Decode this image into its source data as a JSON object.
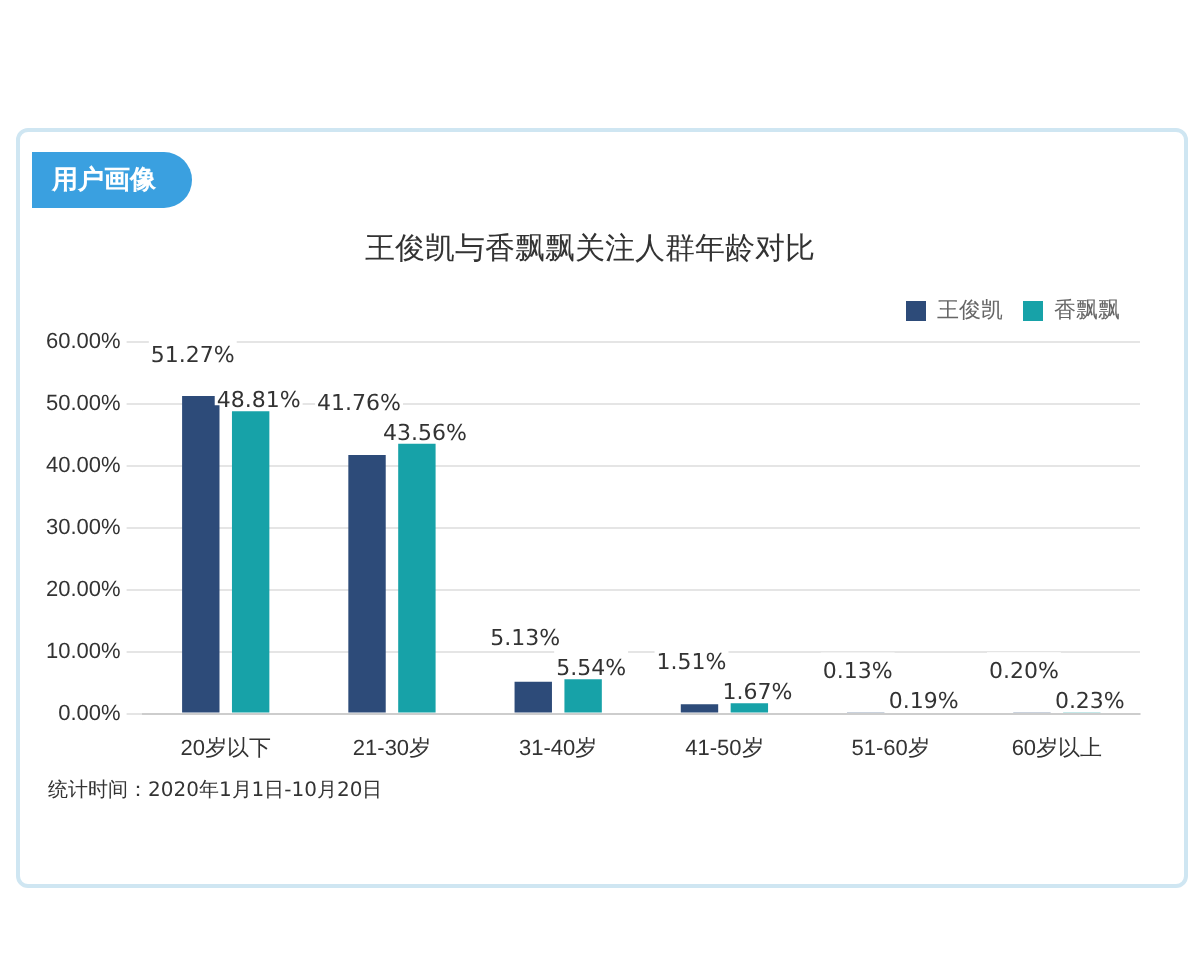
{
  "chart_data": {
    "type": "bar",
    "title": "王俊凯与香飘飘关注人群年龄对比",
    "categories": [
      "20岁以下",
      "21-30岁",
      "31-40岁",
      "41-50岁",
      "51-60岁",
      "60岁以上"
    ],
    "series": [
      {
        "name": "王俊凯",
        "color": "#2d4b79",
        "values": [
          51.27,
          41.76,
          5.13,
          1.51,
          0.13,
          0.2
        ],
        "value_labels": [
          "51.27%",
          "41.76%",
          "5.13%",
          "1.51%",
          "0.13%",
          "0.20%"
        ]
      },
      {
        "name": "香飘飘",
        "color": "#17a2a8",
        "values": [
          48.81,
          43.56,
          5.54,
          1.67,
          0.19,
          0.23
        ],
        "value_labels": [
          "48.81%",
          "43.56%",
          "5.54%",
          "1.67%",
          "0.19%",
          "0.23%"
        ]
      }
    ],
    "ylim": [
      0,
      60
    ],
    "yticks": [
      {
        "value": 0,
        "label": "0.00%"
      },
      {
        "value": 10,
        "label": "10.00%"
      },
      {
        "value": 20,
        "label": "20.00%"
      },
      {
        "value": 30,
        "label": "30.00%"
      },
      {
        "value": 40,
        "label": "40.00%"
      },
      {
        "value": 50,
        "label": "50.00%"
      },
      {
        "value": 60,
        "label": "60.00%"
      }
    ],
    "grid": "y",
    "legend": "top right",
    "annotations": [
      "用户画像",
      "统计时间：2020年1月1日-10月20日"
    ]
  }
}
